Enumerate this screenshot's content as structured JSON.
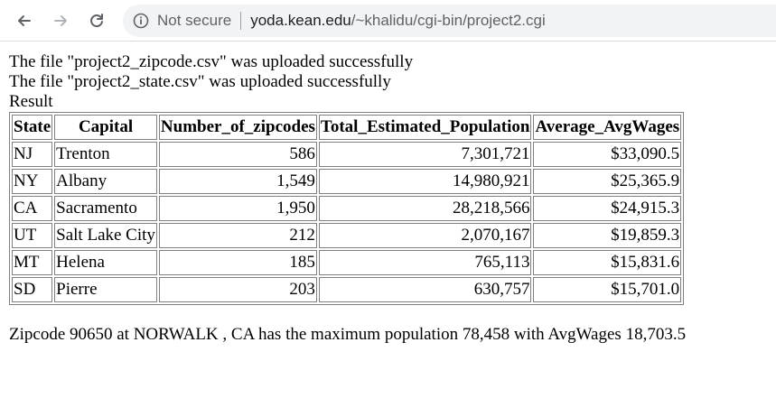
{
  "browser": {
    "back_icon": "arrow-left-icon",
    "forward_icon": "arrow-right-icon",
    "reload_icon": "reload-icon",
    "security_icon": "info-circle-icon",
    "security_label": "Not secure",
    "url_host": "yoda.kean.edu",
    "url_path": "/~khalidu/cgi-bin/project2.cgi"
  },
  "page": {
    "messages": [
      "The file \"project2_zipcode.csv\" was uploaded successfully",
      "The file \"project2_state.csv\" was uploaded successfully"
    ],
    "result_label": "Result",
    "table": {
      "headers": [
        "State",
        "Capital",
        "Number_of_zipcodes",
        "Total_Estimated_Population",
        "Average_AvgWages"
      ],
      "rows": [
        [
          "NJ",
          "Trenton",
          "586",
          "7,301,721",
          "$33,090.5"
        ],
        [
          "NY",
          "Albany",
          "1,549",
          "14,980,921",
          "$25,365.9"
        ],
        [
          "CA",
          "Sacramento",
          "1,950",
          "28,218,566",
          "$24,915.3"
        ],
        [
          "UT",
          "Salt Lake City",
          "212",
          "2,070,167",
          "$19,859.3"
        ],
        [
          "MT",
          "Helena",
          "185",
          "765,113",
          "$15,831.6"
        ],
        [
          "SD",
          "Pierre",
          "203",
          "630,757",
          "$15,701.0"
        ]
      ]
    },
    "summary": "Zipcode 90650 at NORWALK , CA has the maximum population 78,458 with AvgWages 18,703.5"
  }
}
